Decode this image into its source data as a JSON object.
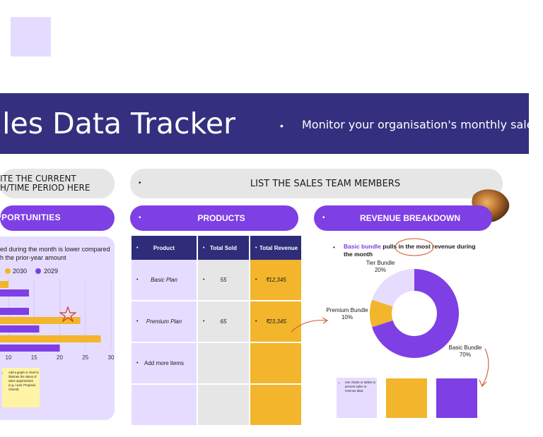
{
  "header": {
    "title": "ales Data Tracker",
    "subtitle": "Monitor your organisation's monthly sales",
    "bullet": "•"
  },
  "date_box": {
    "line1": "ITE THE CURRENT",
    "line2": "H/TIME PERIOD HERE"
  },
  "team_box": {
    "label": "LIST THE SALES TEAM MEMBERS"
  },
  "opportunities": {
    "label": "OPPORTUNITIES",
    "desc_line1": "ed during the month is lower compared",
    "desc_line2": "h the prior-year amount",
    "note_text": "Add a graph or chart to illustrate the status of sales opportunities (e.g. Lead, Proposal, Closed)"
  },
  "products": {
    "label": "PRODUCTS",
    "columns": [
      "Product",
      "Total Sold",
      "Total Revenue"
    ],
    "rows": [
      {
        "product": "Basic Plan",
        "sold": "55",
        "revenue": "₹12,345"
      },
      {
        "product": "Premium Plan",
        "sold": "65",
        "revenue": "₹23,345"
      },
      {
        "product": "Add more items",
        "sold": "",
        "revenue": ""
      },
      {
        "product": "",
        "sold": "",
        "revenue": ""
      }
    ]
  },
  "revenue": {
    "label": "REVENUE BREAKDOWN",
    "desc_highlight": "Basic bundle",
    "desc_rest": " pulls in the most revenue during the month",
    "note_text": "Use charts or tables to present sales or revenue data"
  },
  "colors": {
    "navy": "#34307f",
    "purple": "#7e3fe4",
    "lilac": "#e6dcff",
    "yellow": "#f2b52c",
    "gray": "#e6e6e6"
  },
  "chart_data": [
    {
      "type": "bar",
      "orientation": "horizontal",
      "legend": [
        "2030",
        "2029"
      ],
      "xlim": [
        0,
        30
      ],
      "xticks": [
        "10",
        "15",
        "20",
        "25",
        "30"
      ],
      "series": [
        {
          "name": "2030",
          "color": "#f2b52c",
          "values": [
            10,
            24,
            28
          ]
        },
        {
          "name": "2029",
          "color": "#7e3fe4",
          "values": [
            14,
            14,
            16,
            20
          ]
        }
      ]
    },
    {
      "type": "pie",
      "donut": true,
      "slices": [
        {
          "label": "Basic Bundle",
          "pct": "70%",
          "value": 70,
          "color": "#7e3fe4"
        },
        {
          "label": "Premium Bundle",
          "pct": "10%",
          "value": 10,
          "color": "#f2b52c"
        },
        {
          "label": "Tier Bundle",
          "pct": "20%",
          "value": 20,
          "color": "#e6dcff"
        }
      ]
    }
  ]
}
